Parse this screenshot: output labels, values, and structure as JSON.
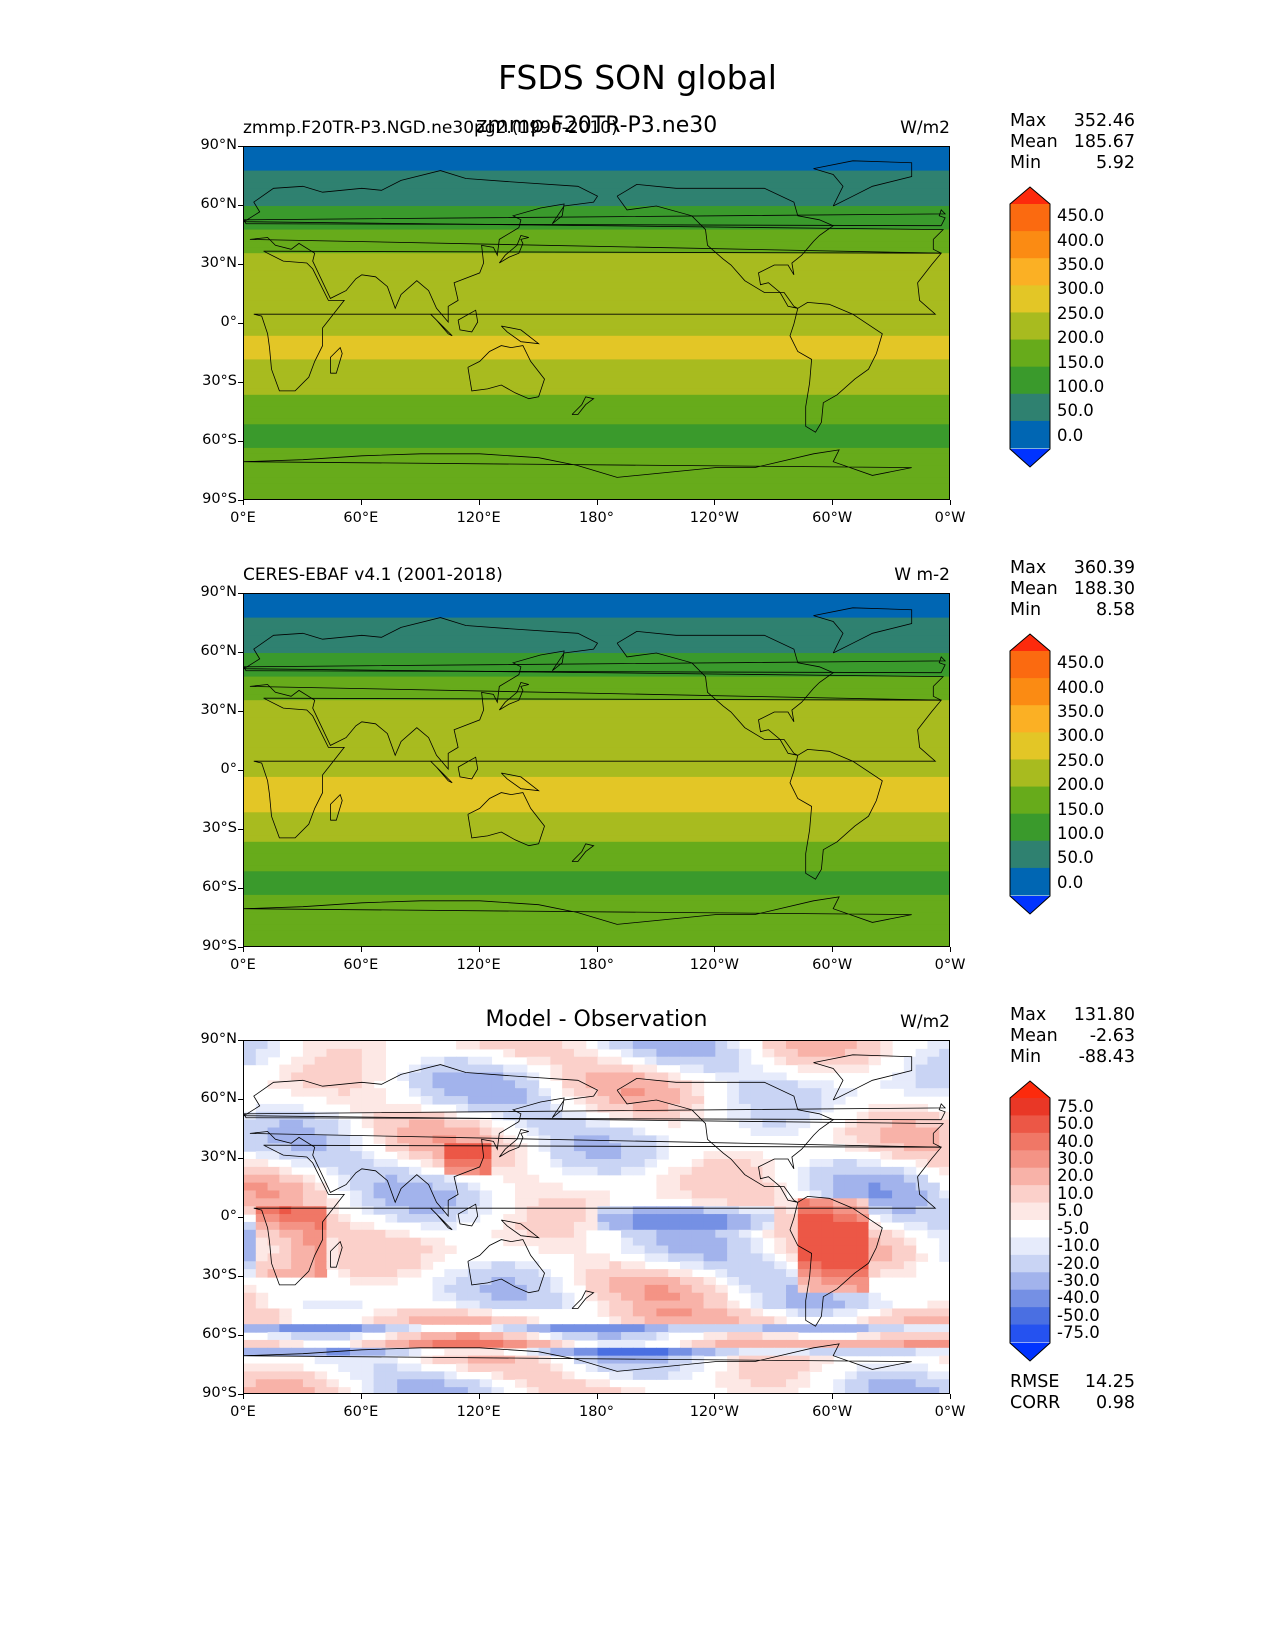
{
  "figure_title": "FSDS SON global",
  "colors": {
    "ref_levels": [
      "#0033ff",
      "#0066b3",
      "#2f8170",
      "#3a9a2c",
      "#67ab1b",
      "#a8bb1f",
      "#e3c626",
      "#fbb024",
      "#fb8b13",
      "#fb6a10",
      "#fd2a0c"
    ],
    "diff_levels": [
      "#0033ff",
      "#2552f0",
      "#4a6fe2",
      "#7590e4",
      "#a2b3ec",
      "#c9d4f4",
      "#e6ebfb",
      "#ffffff",
      "#fde8e5",
      "#fbd0ca",
      "#f8b2a8",
      "#f49385",
      "#f07766",
      "#ec5746",
      "#e93726",
      "#fc2a0c"
    ]
  },
  "panels": [
    {
      "id": "test",
      "left_title": "zmmp.F20TR-P3.NGD.ne30pg2.(1990-2010)",
      "center_title": "zmmp.F20TR-P3.ne30",
      "units": "W/m2",
      "stats": {
        "max": "352.46",
        "mean": "185.67",
        "min": "5.92"
      }
    },
    {
      "id": "ref",
      "left_title": "CERES-EBAF v4.1 (2001-2018)",
      "center_title": "",
      "units": "W m-2",
      "stats": {
        "max": "360.39",
        "mean": "188.30",
        "min": "8.58"
      }
    },
    {
      "id": "diff",
      "left_title": "",
      "center_title": "Model - Observation",
      "units": "W/m2",
      "stats": {
        "max": "131.80",
        "mean": "-2.63",
        "min": "-88.43"
      },
      "extra_stats": {
        "rmse": "14.25",
        "corr": "0.98"
      }
    }
  ],
  "stat_labels": {
    "max": "Max",
    "mean": "Mean",
    "min": "Min",
    "rmse": "RMSE",
    "corr": "CORR"
  },
  "chart_data": [
    {
      "type": "heatmap",
      "title": "zmmp.F20TR-P3.ne30",
      "subtitle": "zmmp.F20TR-P3.NGD.ne30pg2.(1990-2010)",
      "units": "W/m2",
      "x_ticks": [
        "0°E",
        "60°E",
        "120°E",
        "180°",
        "120°W",
        "60°W",
        "0°W"
      ],
      "y_ticks": [
        "90°N",
        "60°N",
        "30°N",
        "0°",
        "30°S",
        "60°S",
        "90°S"
      ],
      "xlim": [
        0,
        360
      ],
      "ylim": [
        -90,
        90
      ],
      "colorbar_levels": [
        "0.0",
        "50.0",
        "100.0",
        "150.0",
        "200.0",
        "250.0",
        "300.0",
        "350.0",
        "400.0",
        "450.0"
      ],
      "colorbar_extend": "both",
      "zonal_profile": [
        {
          "lat": 85,
          "value": 30
        },
        {
          "lat": 70,
          "value": 70
        },
        {
          "lat": 55,
          "value": 120
        },
        {
          "lat": 45,
          "value": 160
        },
        {
          "lat": 35,
          "value": 210
        },
        {
          "lat": 20,
          "value": 240
        },
        {
          "lat": 5,
          "value": 230
        },
        {
          "lat": -10,
          "value": 260
        },
        {
          "lat": -25,
          "value": 240
        },
        {
          "lat": -40,
          "value": 190
        },
        {
          "lat": -55,
          "value": 130
        },
        {
          "lat": -70,
          "value": 175
        },
        {
          "lat": -85,
          "value": 175
        }
      ]
    },
    {
      "type": "heatmap",
      "title": "CERES-EBAF v4.1 (2001-2018)",
      "units": "W m-2",
      "x_ticks": [
        "0°E",
        "60°E",
        "120°E",
        "180°",
        "120°W",
        "60°W",
        "0°W"
      ],
      "y_ticks": [
        "90°N",
        "60°N",
        "30°N",
        "0°",
        "30°S",
        "60°S",
        "90°S"
      ],
      "xlim": [
        0,
        360
      ],
      "ylim": [
        -90,
        90
      ],
      "colorbar_levels": [
        "0.0",
        "50.0",
        "100.0",
        "150.0",
        "200.0",
        "250.0",
        "300.0",
        "350.0",
        "400.0",
        "450.0"
      ],
      "colorbar_extend": "both",
      "zonal_profile": [
        {
          "lat": 85,
          "value": 30
        },
        {
          "lat": 70,
          "value": 70
        },
        {
          "lat": 55,
          "value": 120
        },
        {
          "lat": 45,
          "value": 160
        },
        {
          "lat": 35,
          "value": 210
        },
        {
          "lat": 20,
          "value": 240
        },
        {
          "lat": 5,
          "value": 235
        },
        {
          "lat": -10,
          "value": 265
        },
        {
          "lat": -25,
          "value": 245
        },
        {
          "lat": -40,
          "value": 190
        },
        {
          "lat": -55,
          "value": 130
        },
        {
          "lat": -70,
          "value": 175
        },
        {
          "lat": -85,
          "value": 175
        }
      ]
    },
    {
      "type": "heatmap",
      "title": "Model - Observation",
      "units": "W/m2",
      "x_ticks": [
        "0°E",
        "60°E",
        "120°E",
        "180°",
        "120°W",
        "60°W",
        "0°W"
      ],
      "y_ticks": [
        "90°N",
        "60°N",
        "30°N",
        "0°",
        "30°S",
        "60°S",
        "90°S"
      ],
      "xlim": [
        0,
        360
      ],
      "ylim": [
        -90,
        90
      ],
      "colorbar_levels": [
        "-75.0",
        "-50.0",
        "-40.0",
        "-30.0",
        "-20.0",
        "-10.0",
        "-5.0",
        "5.0",
        "10.0",
        "20.0",
        "30.0",
        "40.0",
        "50.0",
        "75.0"
      ],
      "colorbar_extend": "both"
    }
  ]
}
